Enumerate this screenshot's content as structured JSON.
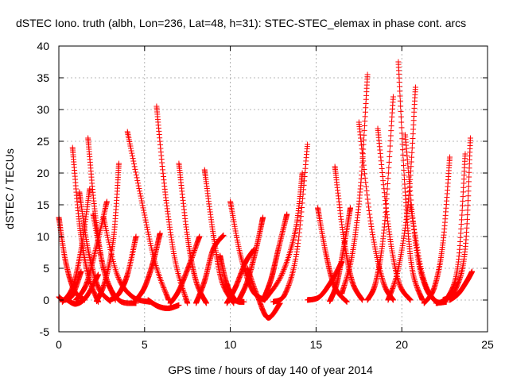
{
  "chart_data": {
    "type": "scatter",
    "title": "dSTEC Iono. truth (albh, Lon=236, Lat=48, h=31): STEC-STEC_elemax in phase cont. arcs",
    "xlabel": "GPS time / hours of day 140 of year 2014",
    "ylabel": "dSTEC  / TECUs",
    "xlim": [
      0,
      25
    ],
    "ylim": [
      -5,
      40
    ],
    "x_ticks": [
      0,
      5,
      10,
      15,
      20,
      25
    ],
    "y_ticks": [
      -5,
      0,
      5,
      10,
      15,
      20,
      25,
      30,
      35,
      40
    ],
    "grid": true,
    "legend": "none",
    "marker": "plus",
    "color": "#ff0000",
    "series": [
      {
        "x": [
          0.0,
          0.4,
          0.9,
          1.5
        ],
        "y": [
          13.0,
          6.0,
          1.5,
          0.0
        ]
      },
      {
        "x": [
          0.0,
          0.3,
          0.8,
          1.3
        ],
        "y": [
          0.5,
          0.0,
          0.8,
          4.5
        ]
      },
      {
        "x": [
          0.5,
          1.0,
          1.6,
          2.3
        ],
        "y": [
          0.0,
          -0.6,
          0.5,
          4.0
        ]
      },
      {
        "x": [
          0.8,
          1.2,
          1.7,
          2.3
        ],
        "y": [
          24.0,
          12.0,
          4.0,
          -0.3
        ]
      },
      {
        "x": [
          0.2,
          0.8,
          1.3,
          1.8
        ],
        "y": [
          -0.3,
          2.0,
          8.0,
          17.5
        ]
      },
      {
        "x": [
          1.2,
          1.7,
          2.3,
          3.0
        ],
        "y": [
          17.0,
          8.0,
          2.0,
          -0.2
        ]
      },
      {
        "x": [
          1.7,
          2.1,
          2.6,
          3.3
        ],
        "y": [
          25.5,
          14.0,
          5.0,
          0.0
        ]
      },
      {
        "x": [
          1.0,
          1.6,
          2.2,
          2.8
        ],
        "y": [
          0.0,
          2.5,
          8.5,
          15.5
        ]
      },
      {
        "x": [
          2.0,
          2.7,
          3.5,
          4.5
        ],
        "y": [
          13.5,
          4.0,
          0.0,
          -0.5
        ]
      },
      {
        "x": [
          2.2,
          2.7,
          3.2,
          3.5
        ],
        "y": [
          -0.2,
          3.0,
          10.0,
          21.5
        ]
      },
      {
        "x": [
          2.6,
          3.4,
          4.3,
          5.3
        ],
        "y": [
          13.0,
          4.0,
          0.5,
          -0.3
        ]
      },
      {
        "x": [
          3.0,
          3.5,
          4.0,
          4.5
        ],
        "y": [
          0.0,
          1.0,
          4.0,
          10.0
        ]
      },
      {
        "x": [
          4.0,
          4.8,
          5.6,
          6.4
        ],
        "y": [
          26.5,
          16.0,
          6.0,
          0.0
        ]
      },
      {
        "x": [
          4.5,
          5.0,
          5.5,
          5.9
        ],
        "y": [
          0.0,
          2.0,
          6.0,
          10.5
        ]
      },
      {
        "x": [
          5.7,
          6.2,
          6.8,
          7.5
        ],
        "y": [
          30.5,
          17.0,
          6.0,
          -0.5
        ]
      },
      {
        "x": [
          5.2,
          5.8,
          6.4,
          7.0
        ],
        "y": [
          0.0,
          -1.0,
          -1.3,
          -0.8
        ]
      },
      {
        "x": [
          7.0,
          7.5,
          8.0,
          8.6
        ],
        "y": [
          21.5,
          10.0,
          3.0,
          -0.5
        ]
      },
      {
        "x": [
          6.5,
          7.0,
          7.6,
          8.2
        ],
        "y": [
          -0.5,
          1.5,
          5.5,
          10.0
        ]
      },
      {
        "x": [
          8.5,
          9.0,
          9.5,
          10.2
        ],
        "y": [
          20.5,
          10.5,
          3.0,
          -0.5
        ]
      },
      {
        "x": [
          8.0,
          8.5,
          9.0,
          9.6
        ],
        "y": [
          -0.5,
          3.0,
          8.0,
          10.2
        ]
      },
      {
        "x": [
          9.4,
          9.8,
          10.3,
          10.8
        ],
        "y": [
          7.0,
          2.5,
          0.0,
          -0.3
        ]
      },
      {
        "x": [
          10.0,
          10.6,
          11.3,
          12.0
        ],
        "y": [
          15.5,
          7.0,
          1.5,
          0.0
        ]
      },
      {
        "x": [
          9.8,
          10.3,
          10.9,
          11.4
        ],
        "y": [
          -0.5,
          2.0,
          6.0,
          8.0
        ]
      },
      {
        "x": [
          10.5,
          11.0,
          11.5,
          11.9
        ],
        "y": [
          0.0,
          3.0,
          8.0,
          13.0
        ]
      },
      {
        "x": [
          11.0,
          11.6,
          12.2,
          12.9
        ],
        "y": [
          5.0,
          0.5,
          -2.8,
          -0.5
        ]
      },
      {
        "x": [
          12.0,
          12.4,
          12.8,
          13.3
        ],
        "y": [
          0.5,
          3.5,
          8.0,
          13.5
        ]
      },
      {
        "x": [
          12.5,
          13.2,
          13.9,
          14.5
        ],
        "y": [
          -0.3,
          1.0,
          8.0,
          24.5
        ]
      },
      {
        "x": [
          12.0,
          13.0,
          13.8,
          14.2
        ],
        "y": [
          0.0,
          4.0,
          11.0,
          20.0
        ]
      },
      {
        "x": [
          14.5,
          15.2,
          15.9,
          16.5
        ],
        "y": [
          0.0,
          0.5,
          3.0,
          6.0
        ]
      },
      {
        "x": [
          15.1,
          15.6,
          16.1,
          16.8
        ],
        "y": [
          14.5,
          7.0,
          2.0,
          -0.3
        ]
      },
      {
        "x": [
          16.1,
          16.6,
          17.1,
          17.7
        ],
        "y": [
          21.0,
          10.0,
          3.0,
          0.0
        ]
      },
      {
        "x": [
          15.8,
          16.2,
          16.6,
          17.0
        ],
        "y": [
          -0.2,
          2.5,
          8.0,
          14.5
        ]
      },
      {
        "x": [
          16.5,
          17.1,
          17.6,
          18.0
        ],
        "y": [
          1.0,
          7.0,
          18.0,
          35.5
        ]
      },
      {
        "x": [
          17.5,
          18.2,
          18.9,
          19.5
        ],
        "y": [
          28.0,
          12.0,
          3.0,
          0.0
        ]
      },
      {
        "x": [
          18.6,
          19.2,
          19.8,
          20.5
        ],
        "y": [
          27.0,
          12.0,
          3.0,
          0.0
        ]
      },
      {
        "x": [
          18.0,
          18.5,
          19.0,
          19.5
        ],
        "y": [
          0.0,
          3.0,
          12.0,
          32.0
        ]
      },
      {
        "x": [
          19.8,
          20.2,
          20.6,
          21.2
        ],
        "y": [
          37.5,
          17.0,
          5.0,
          0.0
        ]
      },
      {
        "x": [
          20.2,
          20.8,
          21.4,
          22.1
        ],
        "y": [
          26.0,
          9.0,
          2.0,
          -0.5
        ]
      },
      {
        "x": [
          19.2,
          19.8,
          20.4,
          20.8
        ],
        "y": [
          0.0,
          5.0,
          16.0,
          33.5
        ]
      },
      {
        "x": [
          20.5,
          21.2,
          21.9,
          22.6
        ],
        "y": [
          15.0,
          4.0,
          0.0,
          -0.3
        ]
      },
      {
        "x": [
          21.3,
          21.9,
          22.4,
          22.8
        ],
        "y": [
          -0.5,
          2.0,
          9.0,
          22.5
        ]
      },
      {
        "x": [
          22.0,
          22.7,
          23.3,
          23.7
        ],
        "y": [
          -0.5,
          0.5,
          6.0,
          23.0
        ]
      },
      {
        "x": [
          22.4,
          23.1,
          23.7,
          24.0
        ],
        "y": [
          0.0,
          1.5,
          8.0,
          25.5
        ]
      },
      {
        "x": [
          22.8,
          23.3,
          23.8,
          24.1
        ],
        "y": [
          0.0,
          1.0,
          3.0,
          4.5
        ]
      }
    ]
  }
}
